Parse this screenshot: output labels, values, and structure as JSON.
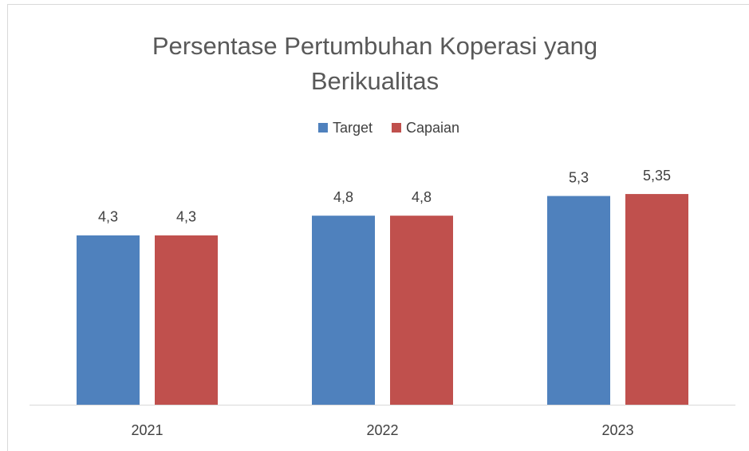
{
  "chart_data": {
    "type": "bar",
    "title": "Persentase Pertumbuhan Koperasi yang Berikualitas",
    "categories": [
      "2021",
      "2022",
      "2023"
    ],
    "series": [
      {
        "name": "Target",
        "color": "#4f81bd",
        "values": [
          4.3,
          4.8,
          5.3
        ],
        "value_labels": [
          "4,3",
          "4,8",
          "5,3"
        ]
      },
      {
        "name": "Capaian",
        "color": "#c0504d",
        "values": [
          4.3,
          4.8,
          5.35
        ],
        "value_labels": [
          "4,3",
          "4,8",
          "5,35"
        ]
      }
    ],
    "ylim": [
      0,
      6
    ],
    "legend": "top"
  }
}
